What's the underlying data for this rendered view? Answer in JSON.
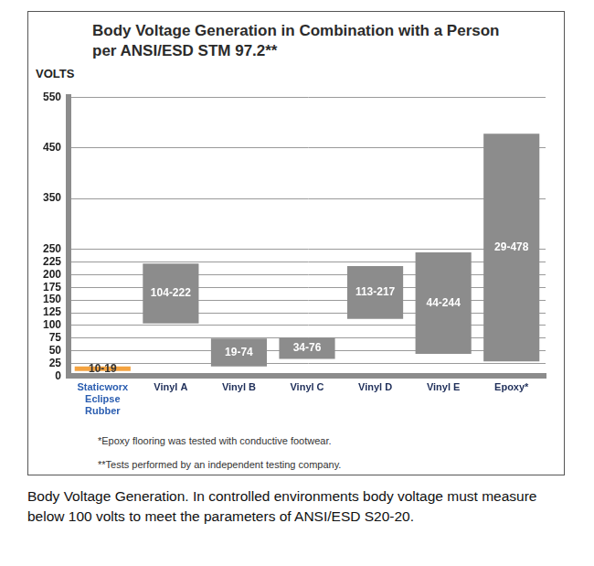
{
  "chart_data": {
    "type": "bar",
    "title": "Body Voltage Generation in Combination with a Person per ANSI/ESD STM 97.2**",
    "ylabel": "VOLTS",
    "categories": [
      "Staticworx Eclipse Rubber",
      "Vinyl A",
      "Vinyl B",
      "Vinyl C",
      "Vinyl D",
      "Vinyl E",
      "Epoxy*"
    ],
    "values": [
      [
        10,
        19
      ],
      [
        104,
        222
      ],
      [
        19,
        74
      ],
      [
        34,
        76
      ],
      [
        113,
        217
      ],
      [
        44,
        244
      ],
      [
        29,
        478
      ]
    ],
    "value_labels": [
      "10-19",
      "104-222",
      "19-74",
      "34-76",
      "113-217",
      "44-244",
      "29-478"
    ],
    "colors": [
      "#f4a340",
      "#8c8c8c",
      "#8c8c8c",
      "#8c8c8c",
      "#8c8c8c",
      "#8c8c8c",
      "#8c8c8c"
    ],
    "data_labels": true,
    "ylim": [
      0,
      550
    ],
    "yticks": [
      0,
      25,
      50,
      75,
      100,
      125,
      150,
      175,
      200,
      225,
      250,
      350,
      450,
      550
    ],
    "grid": true,
    "notes": [
      "*Epoxy flooring was tested with conductive footwear.",
      "**Tests performed by an independent testing company."
    ],
    "caption": "Body Voltage Generation. In controlled environments body voltage must measure below 100 volts to meet the parameters of ANSI/ESD S20-20."
  }
}
